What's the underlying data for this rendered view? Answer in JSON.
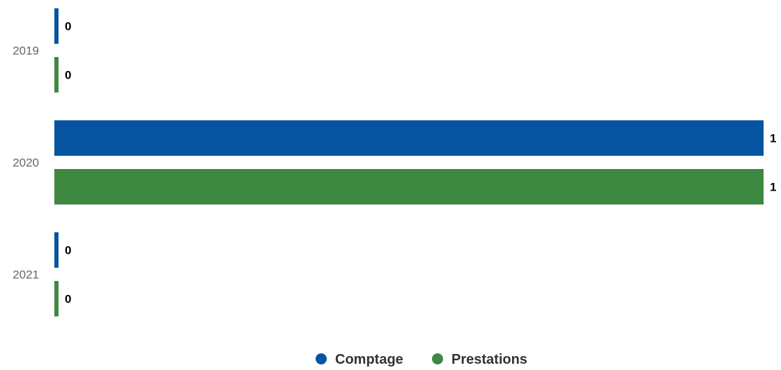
{
  "chart_data": {
    "type": "bar",
    "orientation": "horizontal",
    "categories": [
      "2019",
      "2020",
      "2021"
    ],
    "series": [
      {
        "name": "Comptage",
        "color": "#0754a1",
        "values": [
          0,
          1,
          0
        ]
      },
      {
        "name": "Prestations",
        "color": "#3e8842",
        "values": [
          0,
          1,
          0
        ]
      }
    ],
    "xlim": [
      0,
      1
    ],
    "grid": false,
    "legend_position": "bottom-center",
    "title": "",
    "xlabel": "",
    "ylabel": ""
  }
}
